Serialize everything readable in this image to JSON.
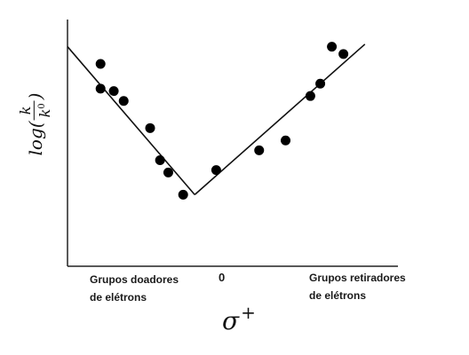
{
  "chart_data": {
    "type": "scatter",
    "title": "",
    "ylabel": "log(k/k0)",
    "xlabel": "σ+",
    "x_tick_labels": {
      "left": "Grupos doadores\nde elétrons",
      "center": "0",
      "right": "Grupos retiradores\nde elétrons"
    },
    "xlim": [
      -10,
      10
    ],
    "ylim": [
      0,
      10
    ],
    "grid": false,
    "legend": "none",
    "points": [
      {
        "x": -8.0,
        "y": 8.2
      },
      {
        "x": -8.0,
        "y": 7.2
      },
      {
        "x": -7.2,
        "y": 7.1
      },
      {
        "x": -6.6,
        "y": 6.7
      },
      {
        "x": -5.0,
        "y": 5.6
      },
      {
        "x": -4.4,
        "y": 4.3
      },
      {
        "x": -3.9,
        "y": 3.8
      },
      {
        "x": -3.0,
        "y": 2.9
      },
      {
        "x": -1.0,
        "y": 3.9
      },
      {
        "x": 1.6,
        "y": 4.7
      },
      {
        "x": 3.2,
        "y": 5.1
      },
      {
        "x": 4.7,
        "y": 6.9
      },
      {
        "x": 5.3,
        "y": 7.4
      },
      {
        "x": 6.0,
        "y": 8.9
      },
      {
        "x": 6.7,
        "y": 8.6
      }
    ],
    "fit_lines": [
      {
        "from": [
          -10,
          8.9
        ],
        "to": [
          -2.3,
          2.9
        ]
      },
      {
        "from": [
          -2.3,
          2.9
        ],
        "to": [
          8.0,
          9.0
        ]
      }
    ],
    "colors": {
      "points": "#000000",
      "line": "#111111",
      "axes": "#222222"
    }
  }
}
